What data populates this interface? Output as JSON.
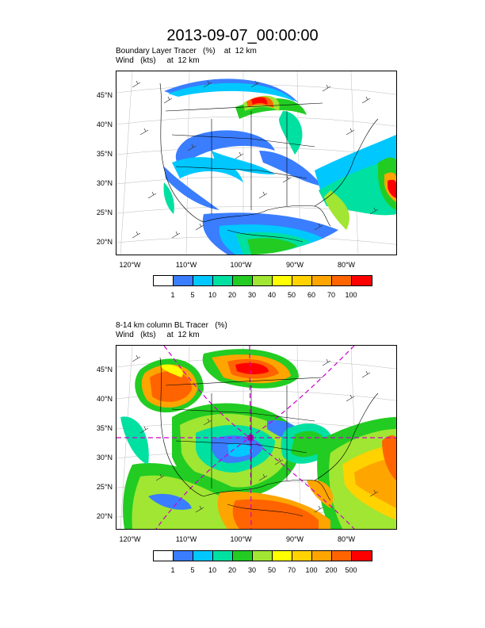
{
  "title": "2013-09-07_00:00:00",
  "panels": [
    {
      "line1": "Boundary Layer Tracer   (%)    at  12 km",
      "line2": "Wind   (kts)     at  12 km",
      "lat_labels": [
        "45°N",
        "40°N",
        "35°N",
        "30°N",
        "25°N",
        "20°N"
      ],
      "lon_labels": [
        "120°W",
        "110°W",
        "100°W",
        "90°W",
        "80°W"
      ],
      "colorbar": {
        "colors": [
          "#ffffff",
          "#3a7dff",
          "#00c8ff",
          "#00e0a0",
          "#22cc22",
          "#a0e632",
          "#ffff00",
          "#ffd200",
          "#ffa500",
          "#ff6400",
          "#ff0000"
        ],
        "labels": [
          "1",
          "5",
          "10",
          "20",
          "30",
          "40",
          "50",
          "60",
          "70",
          "100"
        ]
      }
    },
    {
      "line1": "8-14 km column BL Tracer   (%)",
      "line2": "Wind   (kts)     at  12 km",
      "lat_labels": [
        "45°N",
        "40°N",
        "35°N",
        "30°N",
        "25°N",
        "20°N"
      ],
      "lon_labels": [
        "120°W",
        "110°W",
        "100°W",
        "90°W",
        "80°W"
      ],
      "colorbar": {
        "colors": [
          "#ffffff",
          "#3a7dff",
          "#00c8ff",
          "#00e0a0",
          "#22cc22",
          "#a0e632",
          "#ffff00",
          "#ffd200",
          "#ffa500",
          "#ff6400",
          "#ff0000"
        ],
        "labels": [
          "1",
          "5",
          "10",
          "20",
          "30",
          "50",
          "70",
          "100",
          "200",
          "500"
        ]
      }
    }
  ]
}
